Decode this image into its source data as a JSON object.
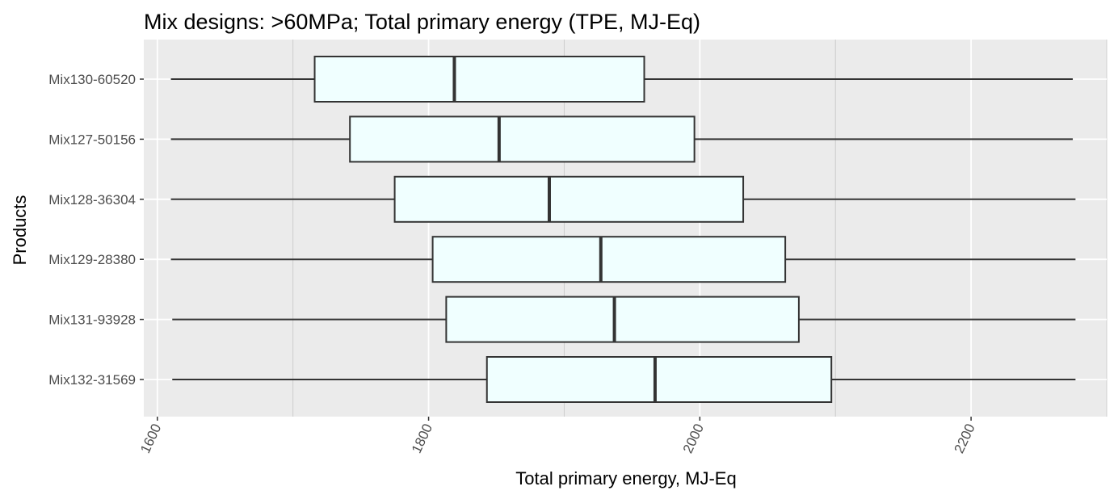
{
  "chart_data": {
    "type": "boxplot",
    "orientation": "horizontal",
    "title": "Mix designs: >60MPa; Total primary energy (TPE, MJ-Eq)",
    "xlabel": "Total primary energy, MJ-Eq",
    "ylabel": "Products",
    "xlim": [
      1590,
      2300
    ],
    "xticks": [
      1600,
      1800,
      2000,
      2200
    ],
    "xtick_labels": [
      "1600",
      "1800",
      "2000",
      "2200"
    ],
    "xtick_rotation_deg": -65,
    "grid": true,
    "background": "#ebebeb",
    "box_fill": "#f0ffff",
    "line_color": "#333333",
    "categories": [
      "Mix130-60520",
      "Mix127-50156",
      "Mix128-36304",
      "Mix129-28380",
      "Mix131-93928",
      "Mix132-31569"
    ],
    "series": [
      {
        "category": "Mix130-60520",
        "min": 1610,
        "q1": 1716,
        "median": 1819,
        "q3": 1959,
        "max": 2275
      },
      {
        "category": "Mix127-50156",
        "min": 1610,
        "q1": 1742,
        "median": 1852,
        "q3": 1996,
        "max": 2275
      },
      {
        "category": "Mix128-36304",
        "min": 1610,
        "q1": 1775,
        "median": 1889,
        "q3": 2032,
        "max": 2277
      },
      {
        "category": "Mix129-28380",
        "min": 1610,
        "q1": 1803,
        "median": 1927,
        "q3": 2063,
        "max": 2277
      },
      {
        "category": "Mix131-93928",
        "min": 1611,
        "q1": 1813,
        "median": 1937,
        "q3": 2073,
        "max": 2277
      },
      {
        "category": "Mix132-31569",
        "min": 1611,
        "q1": 1843,
        "median": 1967,
        "q3": 2097,
        "max": 2277
      }
    ]
  }
}
